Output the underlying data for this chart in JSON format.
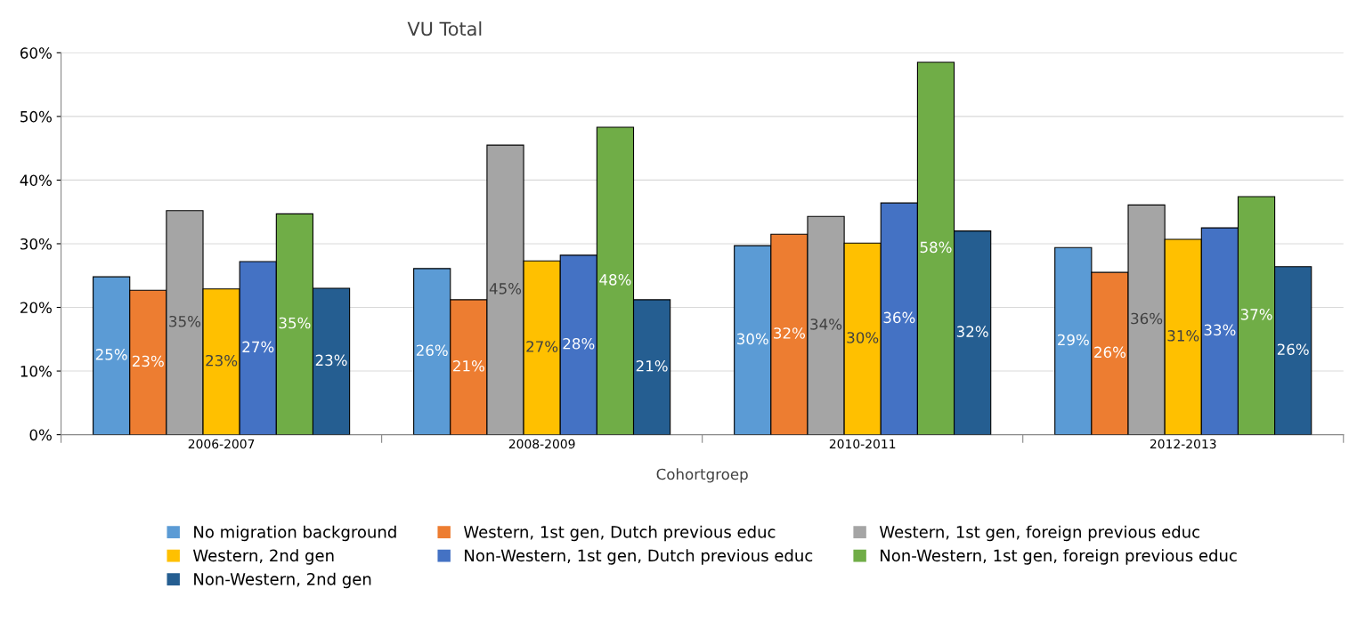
{
  "chart_data": {
    "type": "bar",
    "title": "VU Total",
    "xlabel": "Cohortgroep",
    "categories": [
      "2006-2007",
      "2008-2009",
      "2010-2011",
      "2012-2013"
    ],
    "series": [
      {
        "name": "No migration background",
        "color": "#5b9bd5",
        "values": [
          24.8,
          26.1,
          29.7,
          29.4
        ],
        "value_labels": [
          "25%",
          "26%",
          "30%",
          "29%"
        ]
      },
      {
        "name": "Western, 1st gen, Dutch previous educ",
        "color": "#ed7d31",
        "values": [
          22.7,
          21.2,
          31.5,
          25.5
        ],
        "value_labels": [
          "23%",
          "21%",
          "32%",
          "26%"
        ]
      },
      {
        "name": "Western, 1st gen, foreign previous educ",
        "color": "#a5a5a5",
        "values": [
          35.2,
          45.5,
          34.3,
          36.1
        ],
        "value_labels": [
          "35%",
          "45%",
          "34%",
          "36%"
        ]
      },
      {
        "name": "Western, 2nd gen",
        "color": "#ffc000",
        "values": [
          22.9,
          27.3,
          30.1,
          30.7
        ],
        "value_labels": [
          "23%",
          "27%",
          "30%",
          "31%"
        ]
      },
      {
        "name": "Non-Western, 1st gen, Dutch previous educ",
        "color": "#4472c4",
        "values": [
          27.2,
          28.2,
          36.4,
          32.5
        ],
        "value_labels": [
          "27%",
          "28%",
          "36%",
          "33%"
        ]
      },
      {
        "name": "Non-Western, 1st gen, foreign previous educ",
        "color": "#70ad47",
        "values": [
          34.7,
          48.3,
          58.5,
          37.4
        ],
        "value_labels": [
          "35%",
          "48%",
          "58%",
          "37%"
        ]
      },
      {
        "name": "Non-Western, 2nd gen",
        "color": "#255e91",
        "values": [
          23.0,
          21.2,
          32.0,
          26.4
        ],
        "value_labels": [
          "23%",
          "21%",
          "32%",
          "26%"
        ]
      }
    ],
    "ylim": [
      0,
      60
    ],
    "yticks": [
      {
        "value": 0,
        "label": "0%"
      },
      {
        "value": 10,
        "label": "10%"
      },
      {
        "value": 20,
        "label": "20%"
      },
      {
        "value": 30,
        "label": "30%"
      },
      {
        "value": 40,
        "label": "40%"
      },
      {
        "value": 50,
        "label": "50%"
      },
      {
        "value": 60,
        "label": "60%"
      }
    ],
    "grid": "y",
    "legend": "bottom"
  }
}
